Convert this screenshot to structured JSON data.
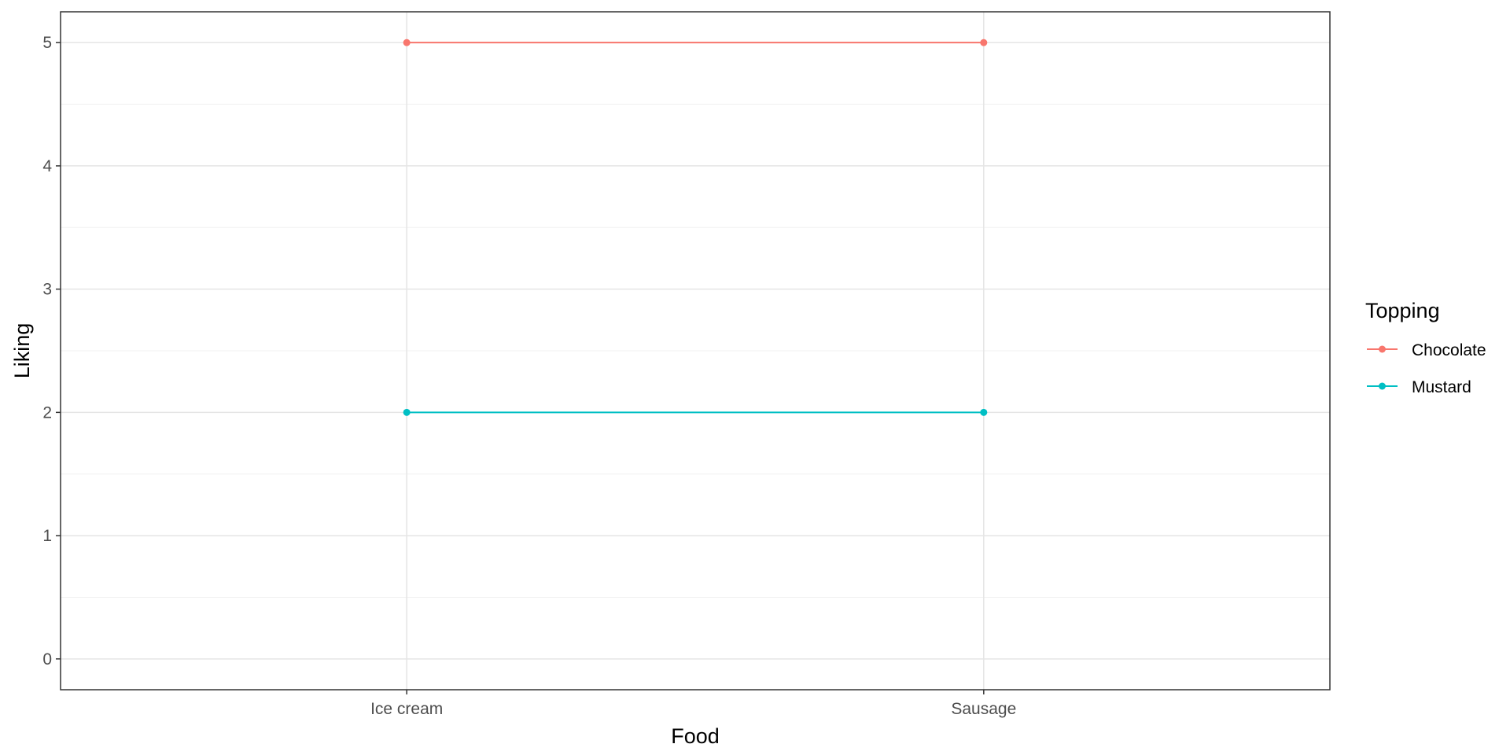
{
  "chart_data": {
    "type": "line",
    "title": "",
    "xlabel": "Food",
    "ylabel": "Liking",
    "categories": [
      "Ice cream",
      "Sausage"
    ],
    "ylim": [
      -0.25,
      5.25
    ],
    "yticks": [
      0,
      1,
      2,
      3,
      4,
      5
    ],
    "grid": true,
    "legend": {
      "title": "Topping",
      "position": "right"
    },
    "series": [
      {
        "name": "Chocolate",
        "values": [
          5,
          5
        ],
        "color": "#F8766D"
      },
      {
        "name": "Mustard",
        "values": [
          2,
          2
        ],
        "color": "#00BFC4"
      }
    ]
  }
}
